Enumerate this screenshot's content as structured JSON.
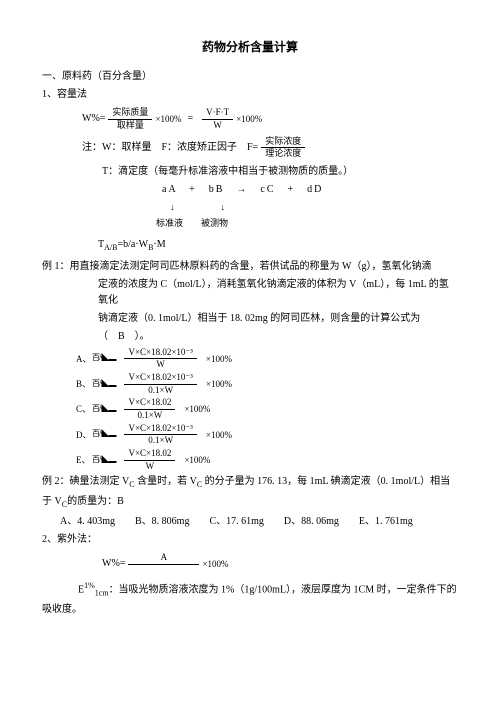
{
  "title": "药物分析含量计算",
  "s1": {
    "h1": "一、原料药（百分含量）",
    "h2": "1、容量法",
    "formula1_lhs": "W%=",
    "f1_num1": "实际质量",
    "f1_den1": "取样量",
    "f1_mid": "×100%",
    "f1_eq": "=",
    "f1_num2": "V·F·T",
    "f1_den2": "W",
    "f1_end": "×100%",
    "note1a": "注：W：取样量　F：浓度矫正因子　F=",
    "note1a_num": "实际浓度",
    "note1a_den": "理论浓度",
    "note1b": "T：滴定度（每毫升标准溶液中相当于被测物质的质量。）",
    "react": "aA　+　bB　→　cC　+　dD",
    "arrows": "↓　　　　↓",
    "labels": "标准液　　被测物",
    "tab": "T",
    "tab_sub": "A/B",
    "tab_rest": "=b/a·W",
    "tab_sub2": "B",
    "tab_rest2": "·M",
    "ex1_l1": "例 1：用直接滴定法测定阿司匹林原料药的含量，若供试品的称量为 W（g），氢氧化钠滴",
    "ex1_l2": "定液的浓度为 C（mol/L），消耗氢氧化钠滴定液的体积为 V（mL），每 1mL 的氢氧化",
    "ex1_l3": "钠滴定液（0. 1mol/L）相当于 18. 02mg 的阿司匹林，则含量的计算公式为",
    "ex1_l4": "（　B　）。",
    "opts": [
      {
        "letter": "A、",
        "num": "V×C×18.02×10⁻³",
        "den": "W",
        "tail": "×100%"
      },
      {
        "letter": "B、",
        "num": "V×C×18.02×10⁻³",
        "den": "0.1×W",
        "tail": "×100%"
      },
      {
        "letter": "C、",
        "num": "V×C×18.02",
        "den": "0.1×W",
        "tail": "×100%"
      },
      {
        "letter": "D、",
        "num": "V×C×18.02×10⁻³",
        "den": "0.1×W",
        "tail": "×100%"
      },
      {
        "letter": "E、",
        "num": "V×C×18.02",
        "den": "W",
        "tail": "×100%"
      }
    ],
    "squig": "百/\\◣▂",
    "ex2_l1": "例 2：碘量法测定 V",
    "ex2_sub": "C",
    "ex2_l1b": " 含量时，若 V",
    "ex2_l1c": " 的分子量为 176. 13，每 1mL 碘滴定液（0. 1mol/L）相当",
    "ex2_l2a": "于 V",
    "ex2_l2b": "的质量为：B",
    "ex2_opts": "A、4. 403mg　　B、8. 806mg　　C、17. 61mg　　D、88. 06mg　　E、1. 761mg",
    "s2h": "2、紫外法：",
    "uv_lhs": "W%=",
    "uv_num": "A",
    "uv_den": "　　　　　　　",
    "uv_tail": "×100%",
    "e_lhs": "E",
    "e_sup": "1%",
    "e_sub": "1cm",
    "e_rest": "：当吸光物质溶液浓度为 1%（1g/100mL），液层厚度为 1CM 时，一定条件下的",
    "e_l2": "吸收度。"
  }
}
